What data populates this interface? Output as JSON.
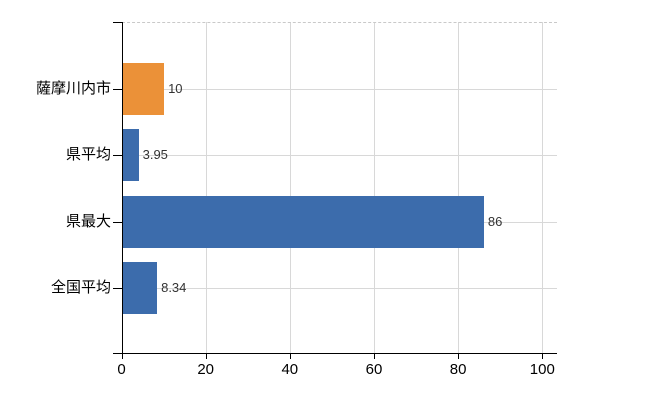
{
  "chart_data": {
    "type": "bar",
    "orientation": "horizontal",
    "title": "",
    "categories": [
      "薩摩川内市",
      "県平均",
      "県最大",
      "全国平均"
    ],
    "values": [
      10,
      3.95,
      86,
      8.34
    ],
    "value_labels": [
      "10",
      "3.95",
      "86",
      "8.34"
    ],
    "bar_colors": [
      "#EB9138",
      "#3C6CAC",
      "#3C6CAC",
      "#3C6CAC"
    ],
    "xlim": [
      0,
      100
    ],
    "x_tick_values": [
      0,
      20,
      40,
      60,
      80,
      100
    ],
    "x_tick_labels": [
      "0",
      "20",
      "40",
      "60",
      "80",
      "100"
    ],
    "grid": true,
    "legend": false
  },
  "colors": {
    "highlight_bar": "#EB9138",
    "default_bar": "#3C6CAC",
    "axis_line": "#000000",
    "gridline": "#D8D8D8",
    "top_border": "#C9C9C9",
    "background": "#FFFFFF",
    "value_label_text": "#333333",
    "axis_label_text": "#000000"
  }
}
